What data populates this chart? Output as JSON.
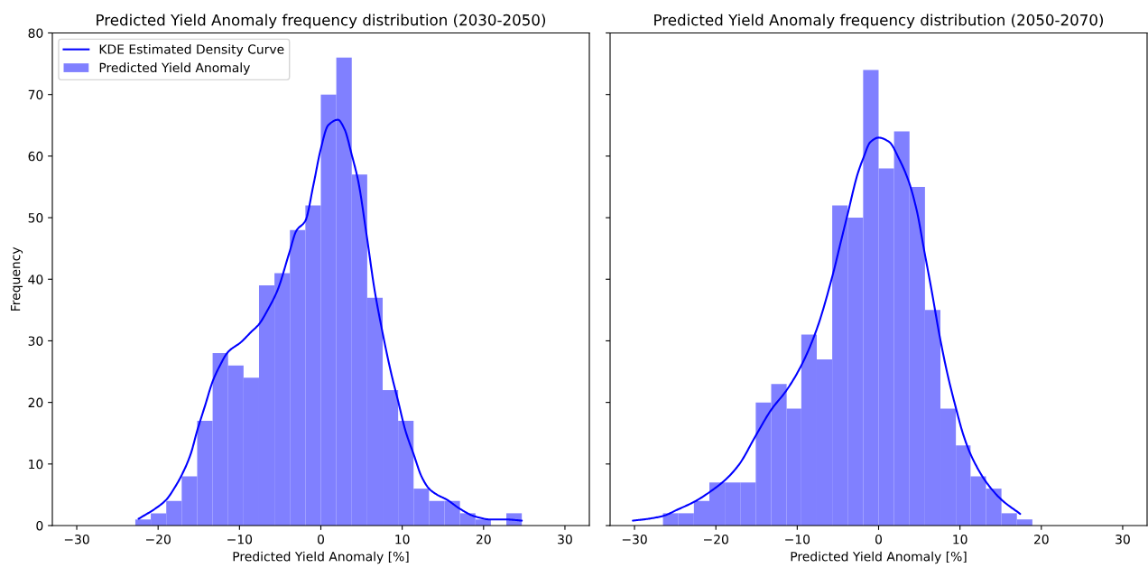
{
  "chart_data": [
    {
      "type": "histogram",
      "title": "Predicted Yield Anomaly frequency distribution (2030-2050)",
      "xlabel": "Predicted Yield Anomaly [%]",
      "ylabel": "Frequency",
      "xlim": [
        -33,
        33
      ],
      "xticks": [
        {
          "value": -30,
          "label": "−30"
        },
        {
          "value": -20,
          "label": "−20"
        },
        {
          "value": -10,
          "label": "−10"
        },
        0,
        10,
        20,
        30
      ],
      "ylim": [
        0,
        80
      ],
      "yticks": [
        0,
        10,
        20,
        30,
        40,
        50,
        60,
        70,
        80
      ],
      "grid": false,
      "legend": "top left",
      "series": [
        {
          "name": "KDE Estimated Density Curve",
          "type": "line",
          "color": "#0000ff",
          "x": [
            -22.4,
            -20.3,
            -19.0,
            -17.9,
            -17.1,
            -16.0,
            -15.2,
            -14.2,
            -13.3,
            -12.4,
            -11.4,
            -9.8,
            -8.6,
            -7.6,
            -6.5,
            -5.3,
            -3.9,
            -3.0,
            -1.9,
            -0.9,
            0.0,
            0.9,
            2.1,
            2.9,
            3.8,
            4.6,
            5.6,
            6.6,
            7.5,
            8.6,
            9.5,
            10.4,
            11.4,
            12.4,
            13.3,
            14.3,
            15.5,
            17.0,
            18.9,
            20.8,
            22.7,
            24.7
          ],
          "values": [
            1.1,
            2.8,
            4.2,
            6.3,
            8.2,
            11.6,
            15.4,
            19.6,
            23.4,
            26.0,
            28.2,
            29.8,
            31.4,
            32.7,
            35.1,
            38.3,
            44.2,
            47.9,
            49.5,
            55.4,
            61.2,
            65.0,
            65.9,
            64.4,
            60.2,
            55.9,
            47.4,
            38.3,
            31.9,
            25.0,
            20.2,
            15.4,
            11.6,
            7.9,
            6.0,
            5.0,
            4.2,
            2.8,
            1.5,
            1.0,
            1.0,
            0.8
          ]
        },
        {
          "name": "Predicted Yield Anomaly",
          "color": "#8080ff",
          "bins": [
            -22.8,
            -20.9,
            -19.0,
            -17.1,
            -15.2,
            -13.3,
            -11.4,
            -9.5,
            -7.6,
            -5.7,
            -3.8,
            -1.9,
            0.0,
            1.9,
            3.8,
            5.7,
            7.6,
            9.5,
            11.4,
            13.3,
            15.2,
            17.1,
            19.0,
            20.9,
            22.8,
            24.7
          ],
          "values": [
            1,
            2,
            4,
            8,
            17,
            28,
            26,
            24,
            39,
            41,
            48,
            52,
            70,
            76,
            57,
            37,
            22,
            17,
            6,
            4,
            4,
            2,
            1,
            0,
            2
          ]
        }
      ]
    },
    {
      "type": "histogram",
      "title": "Predicted Yield Anomaly frequency distribution (2050-2070)",
      "xlabel": "Predicted Yield Anomaly [%]",
      "xlim": [
        -33,
        33
      ],
      "xticks": [
        {
          "value": -30,
          "label": "−30"
        },
        {
          "value": -20,
          "label": "−20"
        },
        {
          "value": -10,
          "label": "−10"
        },
        0,
        10,
        20,
        30
      ],
      "ylim": [
        0,
        80
      ],
      "yticks": [
        0,
        10,
        20,
        30,
        40,
        50,
        60,
        70,
        80
      ],
      "tick_labels": "x",
      "grid": false,
      "legend": false,
      "series": [
        {
          "type": "line",
          "color": "#0000ff",
          "x": [
            -30.2,
            -28.3,
            -26.4,
            -24.7,
            -22.6,
            -20.7,
            -18.7,
            -17.1,
            -15.1,
            -13.2,
            -11.3,
            -9.5,
            -7.6,
            -5.7,
            -4.6,
            -3.8,
            -2.6,
            -1.9,
            -1.0,
            0.0,
            1.3,
            2.5,
            3.7,
            4.7,
            5.6,
            6.5,
            7.5,
            8.5,
            9.5,
            10.4,
            11.3,
            12.3,
            13.2,
            15.1,
            17.4
          ],
          "values": [
            0.8,
            1.1,
            1.6,
            2.6,
            3.9,
            5.5,
            7.6,
            10.0,
            14.6,
            18.8,
            22.0,
            26.0,
            31.9,
            40.4,
            46.3,
            50.6,
            57.0,
            59.6,
            62.3,
            63.0,
            62.3,
            59.6,
            55.9,
            51.1,
            44.7,
            38.3,
            30.8,
            24.4,
            19.1,
            14.8,
            11.6,
            9.0,
            7.1,
            4.2,
            1.9
          ]
        },
        {
          "color": "#8080ff",
          "bins": [
            -26.5,
            -24.6,
            -22.7,
            -20.8,
            -18.9,
            -17.0,
            -15.1,
            -13.2,
            -11.3,
            -9.5,
            -7.6,
            -5.7,
            -3.8,
            -1.9,
            0.0,
            1.9,
            3.8,
            5.7,
            7.6,
            9.5,
            11.3,
            13.2,
            15.1,
            17.0,
            18.9
          ],
          "values": [
            2,
            2,
            4,
            7,
            7,
            7,
            20,
            23,
            19,
            31,
            27,
            52,
            50,
            74,
            58,
            64,
            55,
            35,
            19,
            13,
            8,
            6,
            2,
            1
          ]
        }
      ]
    }
  ]
}
